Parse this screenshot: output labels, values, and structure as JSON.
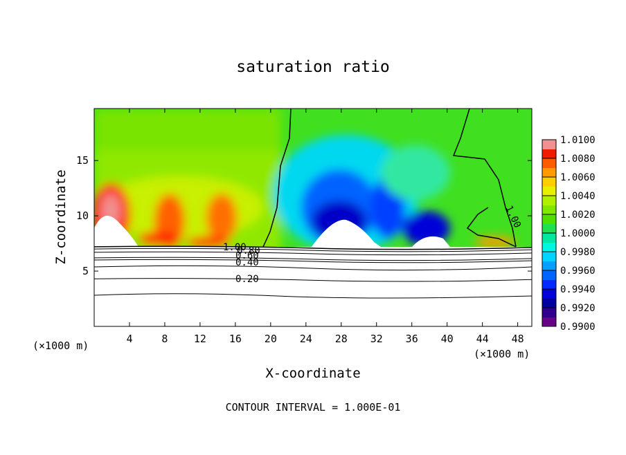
{
  "chart_data": {
    "type": "contour",
    "title": "saturation ratio",
    "x_label": "X-coordinate",
    "y_label": "Z-coordinate",
    "x_units": [
      "(×1000 m)",
      "(×1000 m)"
    ],
    "footer": "CONTOUR INTERVAL = 1.000E-01",
    "xlim": [
      0,
      49.6
    ],
    "ylim": [
      0,
      19.7
    ],
    "xticks": [
      4,
      8,
      12,
      16,
      20,
      24,
      28,
      32,
      36,
      40,
      44,
      48
    ],
    "yticks": [
      5,
      10,
      15
    ],
    "colorbar": {
      "clim": [
        0.99,
        1.01
      ],
      "colors": [
        "#6a0088",
        "#30008c",
        "#0000a0",
        "#0000d8",
        "#0028ff",
        "#0064ff",
        "#00a0ff",
        "#00d4ff",
        "#00f8e0",
        "#00e8a0",
        "#20e050",
        "#50e000",
        "#80e800",
        "#b0f000",
        "#e8f000",
        "#ffd000",
        "#ff9c00",
        "#ff5c00",
        "#f01c00",
        "#f09090"
      ],
      "ticks": [
        {
          "value": 0.99,
          "label": "0.9900"
        },
        {
          "value": 0.992,
          "label": "0.9920"
        },
        {
          "value": 0.994,
          "label": "0.9940"
        },
        {
          "value": 0.996,
          "label": "0.9960"
        },
        {
          "value": 0.998,
          "label": "0.9980"
        },
        {
          "value": 1.0,
          "label": "1.0000"
        },
        {
          "value": 1.002,
          "label": "1.0020"
        },
        {
          "value": 1.004,
          "label": "1.0040"
        },
        {
          "value": 1.006,
          "label": "1.0060"
        },
        {
          "value": 1.008,
          "label": "1.0080"
        },
        {
          "value": 1.01,
          "label": "1.0100"
        }
      ]
    },
    "contours": [
      {
        "value": 1.0,
        "label": "1.00"
      },
      {
        "value": 0.8,
        "label": "0.80"
      },
      {
        "value": 0.6,
        "label": "0.60"
      },
      {
        "value": 0.4,
        "label": "0.40"
      },
      {
        "value": 0.2,
        "label": "0.20"
      }
    ]
  }
}
